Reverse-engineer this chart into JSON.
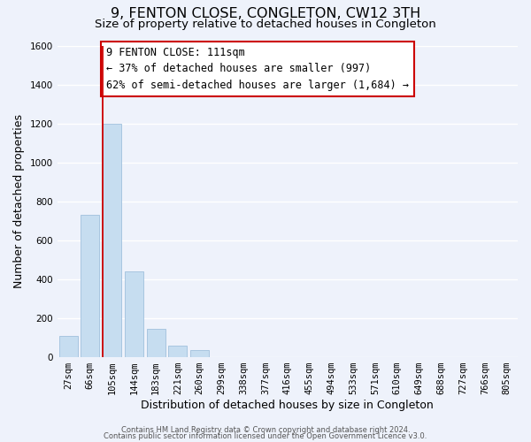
{
  "title": "9, FENTON CLOSE, CONGLETON, CW12 3TH",
  "subtitle": "Size of property relative to detached houses in Congleton",
  "xlabel": "Distribution of detached houses by size in Congleton",
  "ylabel": "Number of detached properties",
  "bar_labels": [
    "27sqm",
    "66sqm",
    "105sqm",
    "144sqm",
    "183sqm",
    "221sqm",
    "260sqm",
    "299sqm",
    "338sqm",
    "377sqm",
    "416sqm",
    "455sqm",
    "494sqm",
    "533sqm",
    "571sqm",
    "610sqm",
    "649sqm",
    "688sqm",
    "727sqm",
    "766sqm",
    "805sqm"
  ],
  "bar_values": [
    110,
    730,
    1200,
    440,
    145,
    60,
    35,
    0,
    0,
    0,
    0,
    0,
    0,
    0,
    0,
    0,
    0,
    0,
    0,
    0,
    0
  ],
  "bar_color": "#c6ddf0",
  "bar_edge_color": "#a0c0dd",
  "vline_color": "#cc0000",
  "annotation_text": "9 FENTON CLOSE: 111sqm\n← 37% of detached houses are smaller (997)\n62% of semi-detached houses are larger (1,684) →",
  "annotation_box_color": "#ffffff",
  "annotation_box_edge": "#cc0000",
  "ylim": [
    0,
    1600
  ],
  "yticks": [
    0,
    200,
    400,
    600,
    800,
    1000,
    1200,
    1400,
    1600
  ],
  "footer_line1": "Contains HM Land Registry data © Crown copyright and database right 2024.",
  "footer_line2": "Contains public sector information licensed under the Open Government Licence v3.0.",
  "background_color": "#eef2fb",
  "plot_bg_color": "#eef2fb",
  "title_fontsize": 11.5,
  "subtitle_fontsize": 9.5,
  "axis_label_fontsize": 9,
  "tick_fontsize": 7.5,
  "annotation_fontsize": 8.5,
  "footer_fontsize": 6
}
